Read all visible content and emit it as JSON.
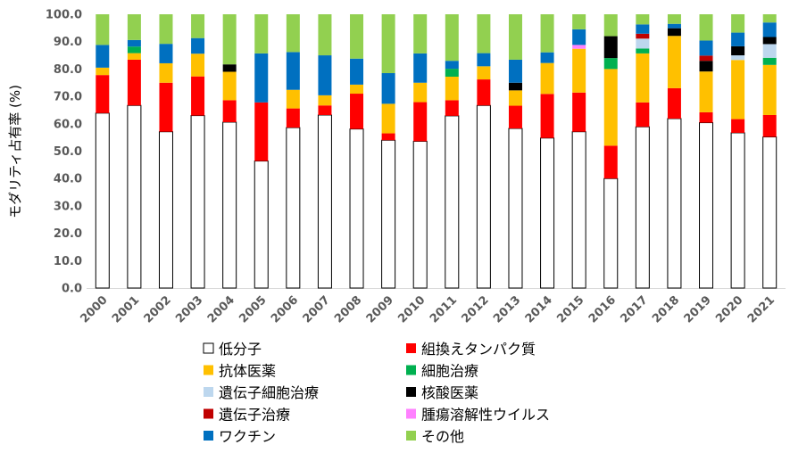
{
  "chart_data": {
    "type": "bar",
    "stacked": true,
    "ylabel": "モダリティ占有率 (%)",
    "ylim": [
      0,
      100
    ],
    "ytick_step": 10,
    "ytick_labels": [
      "0.0",
      "10.0",
      "20.0",
      "30.0",
      "40.0",
      "50.0",
      "60.0",
      "70.0",
      "80.0",
      "90.0",
      "100.0"
    ],
    "grid": false,
    "legend_position": "bottom",
    "categories": [
      "2000",
      "2001",
      "2002",
      "2003",
      "2004",
      "2005",
      "2006",
      "2007",
      "2008",
      "2009",
      "2010",
      "2011",
      "2012",
      "2013",
      "2014",
      "2015",
      "2016",
      "2017",
      "2018",
      "2019",
      "2020",
      "2021"
    ],
    "series": [
      {
        "name": "低分子",
        "color": "#ffffff",
        "stroke": "#000000",
        "values": [
          63.9,
          66.7,
          57.1,
          63.0,
          60.6,
          46.4,
          58.6,
          63.2,
          58.1,
          54.0,
          53.6,
          62.9,
          66.7,
          58.3,
          54.8,
          57.1,
          40.0,
          58.9,
          61.9,
          60.4,
          56.7,
          55.2
        ]
      },
      {
        "name": "組換えタンパク質",
        "color": "#ff0000",
        "values": [
          13.9,
          16.7,
          17.9,
          14.3,
          8.0,
          21.4,
          7.0,
          3.5,
          12.9,
          2.5,
          14.3,
          5.7,
          9.5,
          8.3,
          16.1,
          14.3,
          12.0,
          8.9,
          11.1,
          3.8,
          5.0,
          8.0
        ]
      },
      {
        "name": "抗体医薬",
        "color": "#ffc000",
        "values": [
          2.7,
          2.4,
          7.1,
          8.3,
          10.4,
          0,
          6.8,
          3.7,
          3.3,
          10.8,
          7.1,
          8.6,
          4.8,
          5.6,
          11.3,
          16.0,
          28.0,
          17.9,
          19.1,
          14.9,
          21.6,
          18.3
        ]
      },
      {
        "name": "細胞治療",
        "color": "#00b050",
        "values": [
          0,
          2.4,
          0,
          0,
          0,
          0,
          0,
          0,
          0,
          0,
          0,
          2.9,
          0,
          0,
          0,
          0,
          4.0,
          1.8,
          0,
          0,
          0,
          2.6
        ]
      },
      {
        "name": "遺伝子細胞治療",
        "color": "#bdd7ee",
        "values": [
          0,
          0,
          0,
          0,
          0,
          0,
          0,
          0,
          0,
          0,
          0,
          0,
          0,
          0,
          0,
          0,
          0,
          3.6,
          0,
          0,
          1.7,
          5.0
        ]
      },
      {
        "name": "核酸医薬",
        "color": "#000000",
        "values": [
          0,
          0,
          0,
          0,
          2.7,
          0,
          0,
          0,
          0,
          0,
          0,
          0,
          0,
          2.8,
          0,
          0,
          8.0,
          0,
          2.8,
          3.9,
          3.3,
          2.6
        ]
      },
      {
        "name": "遺伝子治療",
        "color": "#c00000",
        "values": [
          0,
          0,
          0,
          0,
          0,
          0,
          0,
          0,
          0,
          0,
          0,
          0,
          0,
          0,
          0,
          0,
          0,
          1.8,
          0,
          1.9,
          0,
          0
        ]
      },
      {
        "name": "腫瘍溶解性ウイルス",
        "color": "#ff80ff",
        "values": [
          0,
          0,
          0,
          0,
          0,
          0,
          0,
          0,
          0,
          0,
          0,
          0,
          0,
          0,
          0,
          1.4,
          0,
          0,
          0,
          0,
          0,
          0
        ]
      },
      {
        "name": "ワクチン",
        "color": "#0070c0",
        "values": [
          8.3,
          2.4,
          7.1,
          5.7,
          0,
          17.9,
          13.8,
          14.6,
          9.5,
          11.2,
          10.7,
          2.9,
          4.8,
          8.4,
          3.9,
          5.7,
          0,
          3.4,
          1.6,
          5.5,
          5.0,
          5.3
        ]
      },
      {
        "name": "その他",
        "color": "#92d050",
        "values": [
          11.2,
          9.4,
          10.8,
          8.7,
          18.3,
          14.3,
          13.8,
          15.0,
          16.2,
          21.5,
          14.3,
          17.0,
          14.2,
          16.6,
          13.9,
          5.5,
          8.0,
          3.7,
          3.5,
          9.6,
          6.7,
          3.0
        ]
      }
    ],
    "legend_order": [
      "低分子",
      "組換えタンパク質",
      "抗体医薬",
      "細胞治療",
      "遺伝子細胞治療",
      "核酸医薬",
      "遺伝子治療",
      "腫瘍溶解性ウイルス",
      "ワクチン",
      "その他"
    ]
  }
}
